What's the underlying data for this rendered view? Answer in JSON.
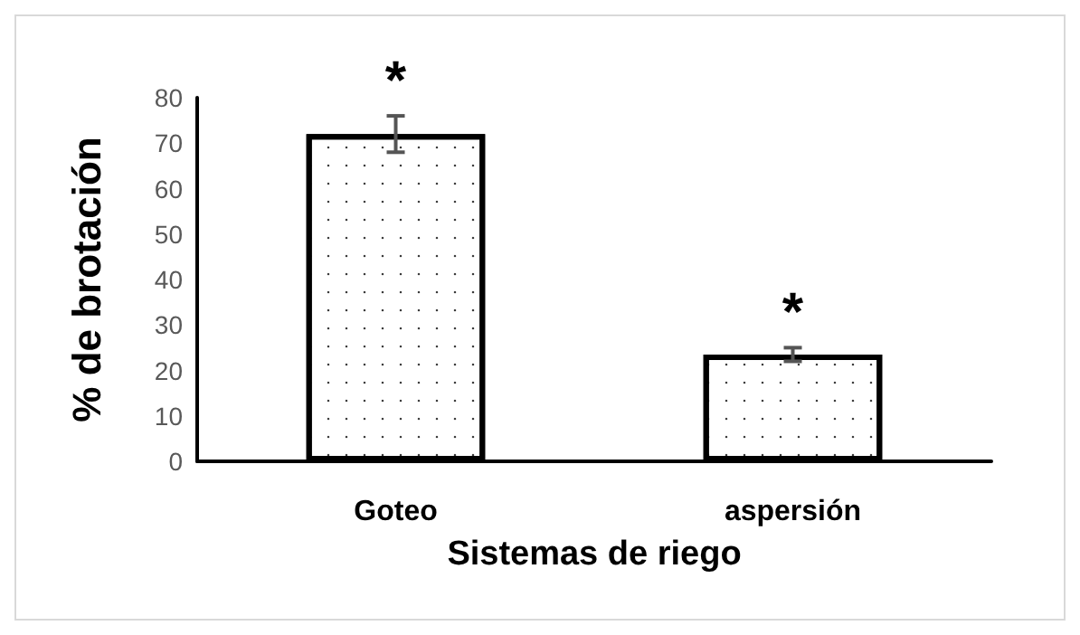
{
  "chart_data": {
    "type": "bar",
    "xlabel": "Sistemas de riego",
    "ylabel": "% de brotación",
    "categories": [
      "Goteo",
      "aspersión"
    ],
    "values": [
      72,
      23.5
    ],
    "errors": [
      4,
      1.5
    ],
    "color": "#ffffff",
    "ylim": [
      0,
      80
    ],
    "yticks": [
      0,
      10,
      20,
      30,
      40,
      50,
      60,
      70,
      80
    ],
    "annotations": [
      {
        "text": "*",
        "x": "Goteo",
        "y": 76
      },
      {
        "text": "*",
        "x": "aspersión",
        "y": 25
      }
    ]
  }
}
